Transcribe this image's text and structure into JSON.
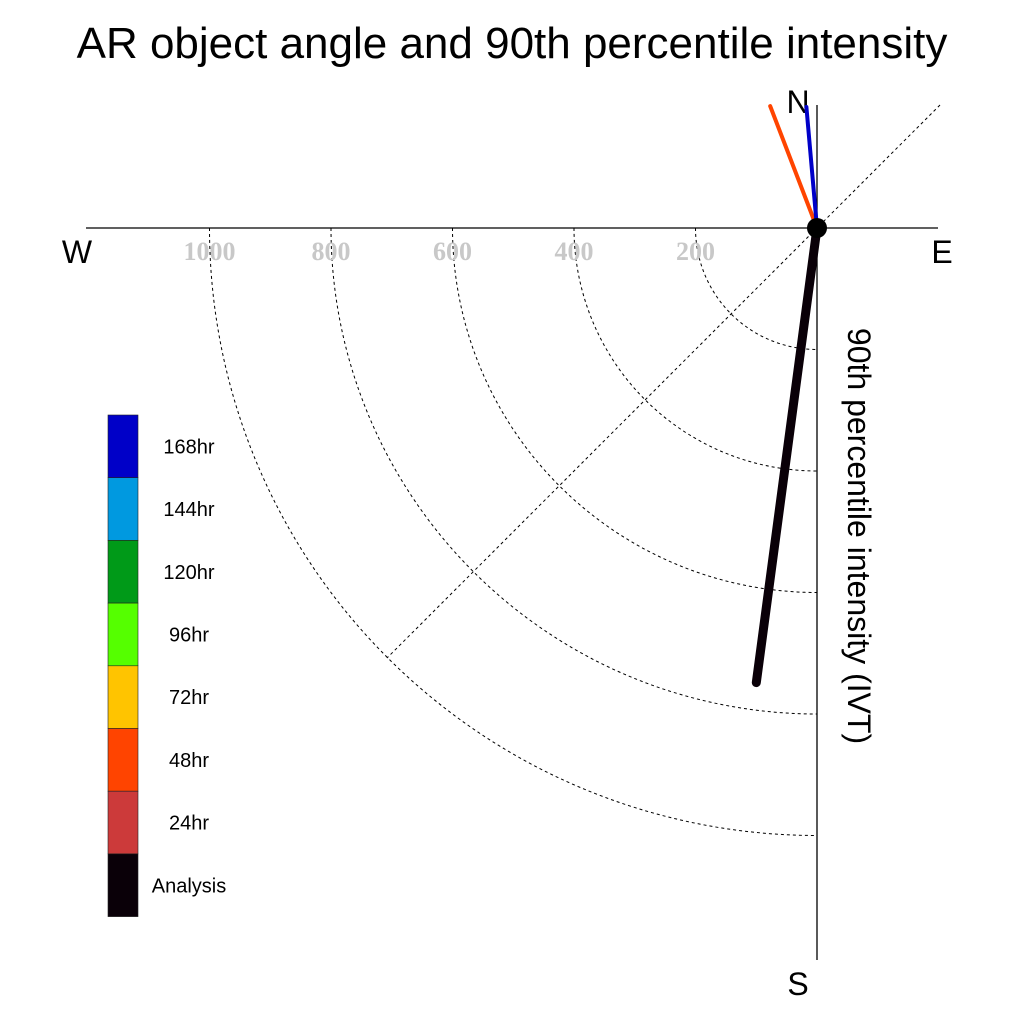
{
  "chart_data": {
    "type": "polar",
    "title": "AR object angle and 90th percentile intensity",
    "radial_axis_label": "90th percentile intensity (IVT)",
    "compass": {
      "north": "N",
      "south": "S",
      "east": "E",
      "west": "W"
    },
    "rings": [
      200,
      400,
      600,
      800,
      1000
    ],
    "ring_labels": [
      "1000",
      "800",
      "600",
      "400",
      "200"
    ],
    "series": [
      {
        "name": "Analysis",
        "color": "#0a0008",
        "angle_deg": 187.6,
        "ivt": 755
      },
      {
        "name": "48hr",
        "color": "#ff4400",
        "angle_deg": 339,
        "ivt": 215
      },
      {
        "name": "168hr",
        "color": "#0000c8",
        "angle_deg": 355,
        "ivt": 200
      }
    ],
    "legend": [
      {
        "label": "168hr",
        "color": "#0000c8"
      },
      {
        "label": "144hr",
        "color": "#0099e0"
      },
      {
        "label": "120hr",
        "color": "#009a18"
      },
      {
        "label": "96hr",
        "color": "#55ff00"
      },
      {
        "label": "72hr",
        "color": "#ffc400"
      },
      {
        "label": "48hr",
        "color": "#ff4400"
      },
      {
        "label": "24hr",
        "color": "#cc3a3a"
      },
      {
        "label": "Analysis",
        "color": "#0a0008"
      }
    ]
  }
}
